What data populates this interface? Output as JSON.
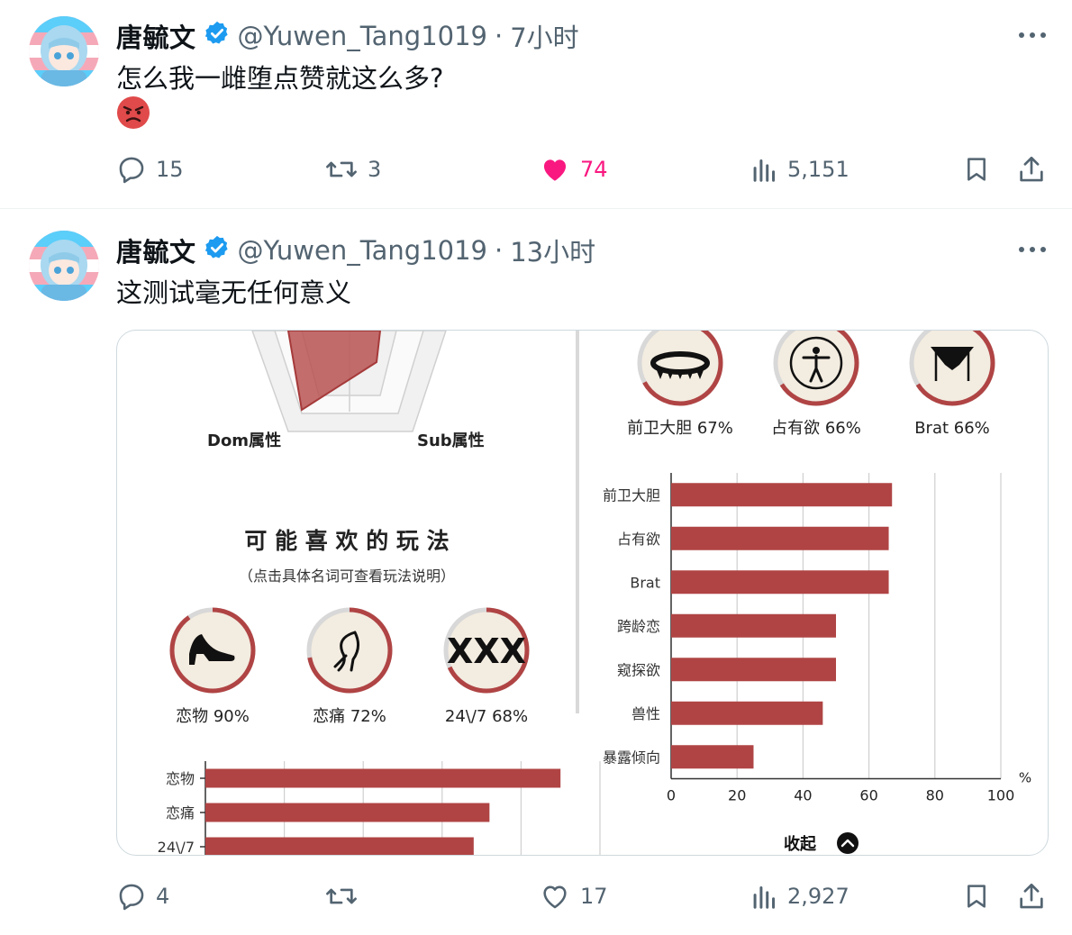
{
  "tweets": [
    {
      "display_name": "唐毓文",
      "handle": "@Yuwen_Tang1019",
      "separator": "·",
      "time": "7小时",
      "text": "怎么我一雌堕点赞就这么多?",
      "emoji": "angry-face",
      "replies": "15",
      "retweets": "3",
      "likes": "74",
      "views": "5,151",
      "liked": true
    },
    {
      "display_name": "唐毓文",
      "handle": "@Yuwen_Tang1019",
      "separator": "·",
      "time": "13小时",
      "text": "这测试毫无任何意义",
      "replies": "4",
      "retweets": "",
      "likes": "17",
      "views": "2,927",
      "liked": false
    }
  ],
  "colors": {
    "verified": "#1d9bf0",
    "like": "#f91880",
    "muted": "#536471",
    "bar": "#b04444",
    "circle_bg": "#f3ece0"
  },
  "media": {
    "radar_labels": {
      "left": "Dom属性",
      "right": "Sub属性"
    },
    "section_title": "可 能 喜 欢 的 玩 法",
    "section_subtitle": "（点击具体名词可查看玩法说明）",
    "left_badges": [
      {
        "label": "恋物 90%",
        "value": 90,
        "icon": "high-heel-icon"
      },
      {
        "label": "恋痛 72%",
        "value": 72,
        "icon": "whip-icon"
      },
      {
        "label": "24\\/7 68%",
        "value": 68,
        "icon": "xxx-icon"
      }
    ],
    "right_badges": [
      {
        "label": "前卫大胆 67%",
        "value": 67,
        "icon": "spiked-collar-icon"
      },
      {
        "label": "占有欲 66%",
        "value": 66,
        "icon": "person-circle-icon"
      },
      {
        "label": "Brat 66%",
        "value": 66,
        "icon": "garter-icon"
      }
    ],
    "collapse_label": "收起"
  },
  "chart_data": [
    {
      "type": "bar",
      "orientation": "horizontal",
      "categories": [
        "前卫大胆",
        "占有欲",
        "Brat",
        "跨龄恋",
        "窥探欲",
        "兽性",
        "暴露倾向"
      ],
      "values": [
        67,
        66,
        66,
        50,
        50,
        46,
        25
      ],
      "xlim": [
        0,
        100
      ],
      "xticks": [
        "0",
        "20",
        "40",
        "60",
        "80",
        "100"
      ],
      "unit": "%",
      "grid": true
    },
    {
      "type": "bar",
      "orientation": "horizontal",
      "categories": [
        "恋物",
        "恋痛",
        "24\\/7"
      ],
      "values": [
        90,
        72,
        68
      ],
      "grid": true
    }
  ]
}
